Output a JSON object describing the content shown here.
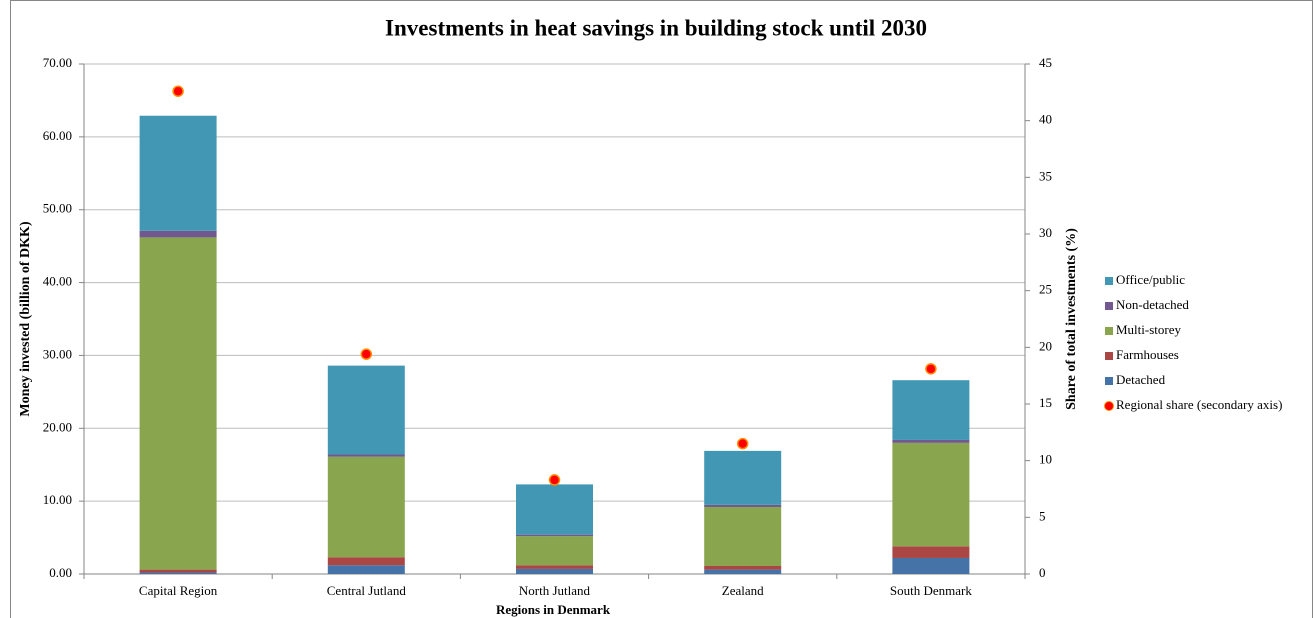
{
  "chart_data": {
    "type": "stacked-bar-with-scatter",
    "title": "Investments in heat savings in building stock until 2030",
    "xlabel": "Regions in Denmark",
    "ylabel": "Money invested (billion  of DKK)",
    "y2label": "Share of total investments (%)",
    "categories": [
      "Capital Region",
      "Central Jutland",
      "North Jutland",
      "Zealand",
      "South Denmark"
    ],
    "series": [
      {
        "name": "Detached",
        "color": "#4572a7",
        "values": [
          0.2,
          1.2,
          0.7,
          0.6,
          2.2
        ]
      },
      {
        "name": "Farmhouses",
        "color": "#aa4643",
        "values": [
          0.4,
          1.1,
          0.5,
          0.5,
          1.6
        ]
      },
      {
        "name": "Multi-storey",
        "color": "#89a54e",
        "values": [
          45.6,
          13.8,
          4.0,
          8.1,
          14.2
        ]
      },
      {
        "name": "Non-detached",
        "color": "#71588f",
        "values": [
          0.9,
          0.3,
          0.2,
          0.3,
          0.4
        ]
      },
      {
        "name": "Office/public",
        "color": "#4298b4",
        "values": [
          15.8,
          12.2,
          6.9,
          7.4,
          8.2
        ]
      },
      {
        "name": "Regional share (secondary axis)",
        "color": "#ff0000",
        "axis": "y2",
        "values": [
          42.6,
          19.4,
          8.3,
          11.5,
          18.1
        ]
      }
    ],
    "ylim": [
      0,
      70
    ],
    "yticks": [
      {
        "value": 0,
        "label": "0.00"
      },
      {
        "value": 10,
        "label": "10.00"
      },
      {
        "value": 20,
        "label": "20.00"
      },
      {
        "value": 30,
        "label": "30.00"
      },
      {
        "value": 40,
        "label": "40.00"
      },
      {
        "value": 50,
        "label": "50.00"
      },
      {
        "value": 60,
        "label": "60.00"
      },
      {
        "value": 70,
        "label": "70.00"
      }
    ],
    "y2lim": [
      0,
      45
    ],
    "y2ticks": [
      0,
      5,
      10,
      15,
      20,
      25,
      30,
      35,
      40,
      45
    ],
    "grid": true,
    "legend": "right"
  }
}
